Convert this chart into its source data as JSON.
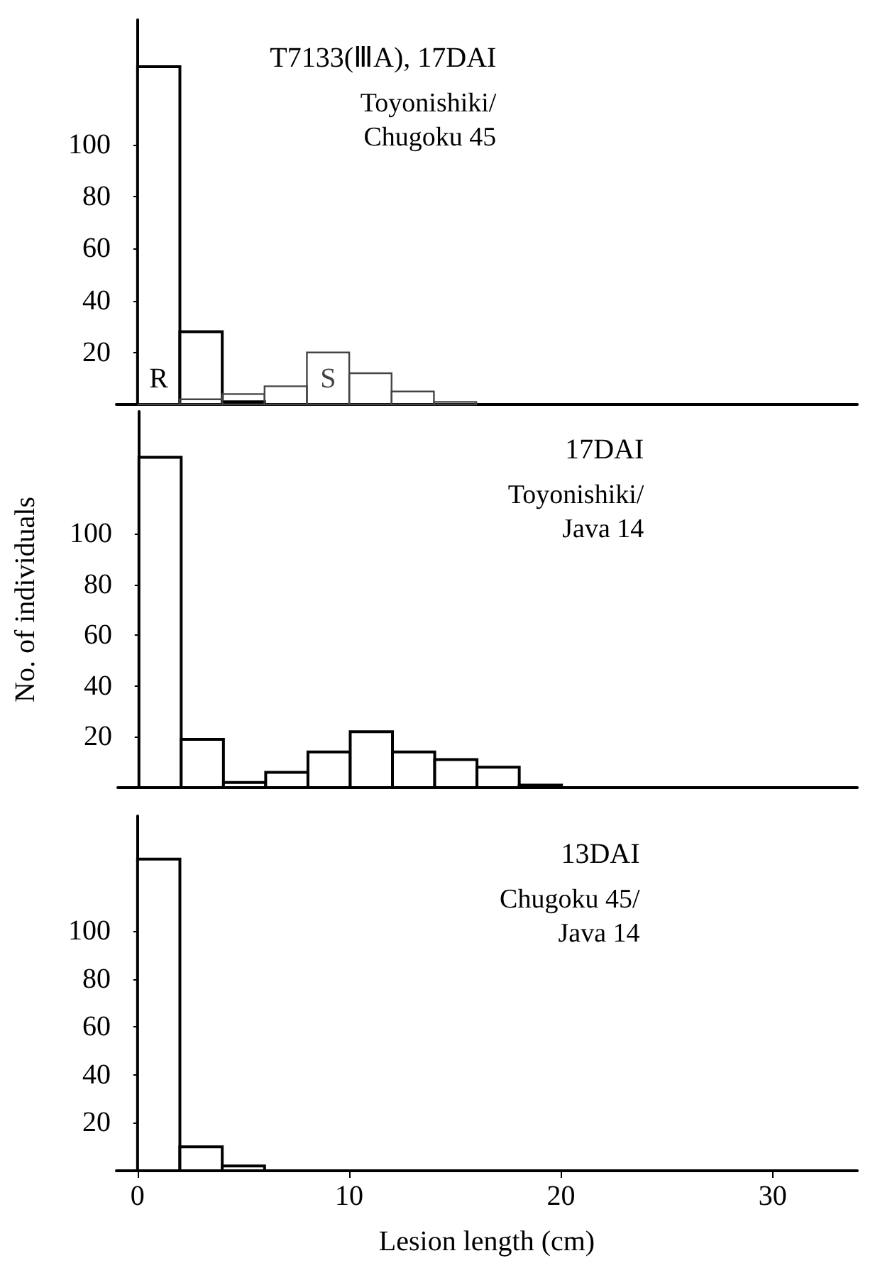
{
  "chart_data": [
    {
      "type": "histogram",
      "title": "T7133(ⅢA), 17DAI",
      "subtitle": "Toyonishiki/\nChugoku 45",
      "bins": [
        0,
        2,
        4,
        6,
        8,
        10,
        12,
        14,
        16
      ],
      "xlim": [
        -1,
        34
      ],
      "xticks": [
        0,
        10,
        20,
        30
      ],
      "ylim": [
        0,
        148
      ],
      "yticks": [
        20,
        40,
        60,
        80,
        100
      ],
      "tick_labels": "y",
      "series": [
        {
          "name": "R",
          "color": "#000000",
          "values": [
            130,
            28,
            1,
            0,
            0,
            0,
            0,
            0
          ]
        },
        {
          "name": "S",
          "color": "#444444",
          "values": [
            0,
            2,
            4,
            7,
            20,
            12,
            5,
            1
          ]
        }
      ]
    },
    {
      "type": "histogram",
      "title": "17DAI",
      "subtitle": "Toyonishiki/\nJava 14",
      "ylabel": "No. of individuals",
      "bins": [
        0,
        2,
        4,
        6,
        8,
        10,
        12,
        14,
        16,
        18,
        20
      ],
      "values": [
        130,
        19,
        2,
        6,
        14,
        22,
        14,
        11,
        8,
        1
      ],
      "xlim": [
        -1,
        34
      ],
      "xticks": [
        0,
        10,
        20,
        30
      ],
      "ylim": [
        0,
        148
      ],
      "yticks": [
        20,
        40,
        60,
        80,
        100
      ],
      "tick_labels": "y"
    },
    {
      "type": "histogram",
      "title": "13DAI",
      "subtitle": "Chugoku 45/\nJava 14",
      "xlabel": "Lesion length (cm)",
      "bins": [
        0,
        2,
        4,
        6
      ],
      "values": [
        130,
        10,
        2
      ],
      "xlim": [
        -1,
        34
      ],
      "xticks": [
        0,
        10,
        20,
        30
      ],
      "ylim": [
        0,
        148
      ],
      "yticks": [
        20,
        40,
        60,
        80,
        100
      ]
    }
  ]
}
